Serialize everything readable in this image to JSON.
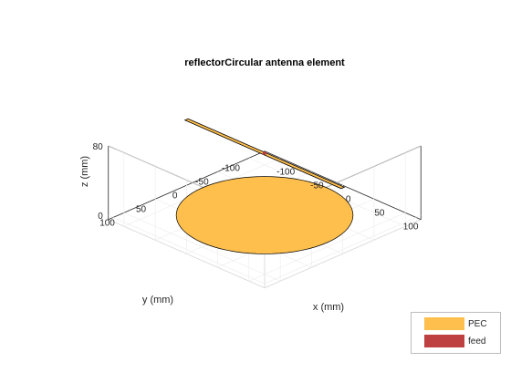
{
  "chart_data": {
    "type": "3d-surface",
    "title": "reflectorCircular antenna element",
    "xlabel": "x (mm)",
    "ylabel": "y (mm)",
    "zlabel": "z (mm)",
    "x_ticks": [
      "-100",
      "-50",
      "0",
      "50",
      "100"
    ],
    "y_ticks": [
      "-100",
      "-50",
      "0",
      "50",
      "100"
    ],
    "z_ticks": [
      "0",
      "80"
    ],
    "xlim": [
      -125,
      125
    ],
    "ylim": [
      -125,
      125
    ],
    "zlim": [
      -5,
      80
    ],
    "grid": true,
    "legend_placement": "bottom-right",
    "legend": [
      {
        "label": "PEC",
        "color": "#ffbf4d"
      },
      {
        "label": "feed",
        "color": "#bf4040"
      }
    ],
    "reflector": {
      "shape": "disc",
      "radius": 100,
      "z": 0
    },
    "dipole": {
      "axis": "x",
      "half_length": 125,
      "z": 71,
      "feed_x": 0
    }
  }
}
